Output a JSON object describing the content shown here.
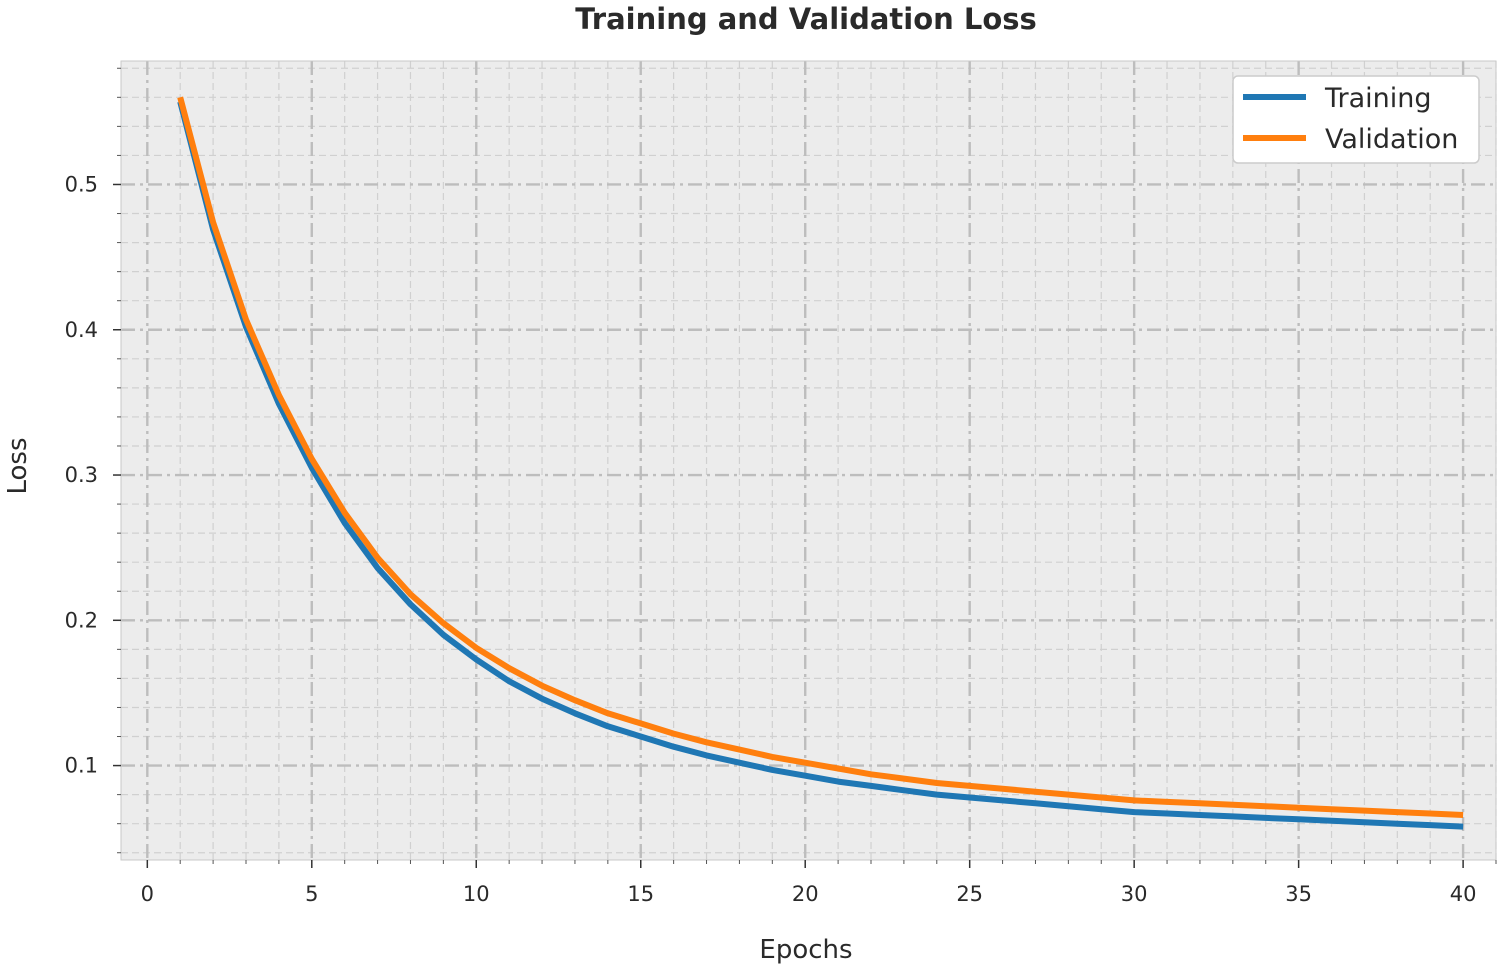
{
  "chart_data": {
    "type": "line",
    "title": "Training and Validation Loss",
    "xlabel": "Epochs",
    "ylabel": "Loss",
    "xlim": [
      -0.8,
      41.0
    ],
    "ylim": [
      0.035,
      0.585
    ],
    "xticks": [
      0,
      5,
      10,
      15,
      20,
      25,
      30,
      35,
      40
    ],
    "xtick_labels": [
      "0",
      "5",
      "10",
      "15",
      "20",
      "25",
      "30",
      "35",
      "40"
    ],
    "yticks": [
      0.1,
      0.2,
      0.3,
      0.4,
      0.5
    ],
    "ytick_labels": [
      "0.1",
      "0.2",
      "0.3",
      "0.4",
      "0.5"
    ],
    "grid": true,
    "legend_position": "top-right",
    "x": [
      1,
      2,
      3,
      4,
      5,
      6,
      7,
      8,
      9,
      10,
      11,
      12,
      13,
      14,
      15,
      16,
      17,
      18,
      19,
      20,
      21,
      22,
      23,
      24,
      25,
      26,
      27,
      28,
      29,
      30,
      31,
      32,
      33,
      34,
      35,
      36,
      37,
      38,
      39,
      40
    ],
    "series": [
      {
        "name": "Training",
        "color": "#1f77b4",
        "values": [
          0.557,
          0.469,
          0.402,
          0.349,
          0.305,
          0.267,
          0.236,
          0.211,
          0.19,
          0.173,
          0.158,
          0.146,
          0.136,
          0.127,
          0.12,
          0.113,
          0.107,
          0.102,
          0.097,
          0.093,
          0.089,
          0.086,
          0.083,
          0.08,
          0.078,
          0.076,
          0.074,
          0.072,
          0.07,
          0.068,
          0.067,
          0.066,
          0.065,
          0.064,
          0.063,
          0.062,
          0.061,
          0.06,
          0.059,
          0.058
        ]
      },
      {
        "name": "Validation",
        "color": "#ff7f0e",
        "values": [
          0.56,
          0.474,
          0.407,
          0.355,
          0.311,
          0.274,
          0.243,
          0.218,
          0.198,
          0.181,
          0.167,
          0.155,
          0.145,
          0.136,
          0.129,
          0.122,
          0.116,
          0.111,
          0.106,
          0.102,
          0.098,
          0.094,
          0.091,
          0.088,
          0.086,
          0.084,
          0.082,
          0.08,
          0.078,
          0.076,
          0.075,
          0.074,
          0.073,
          0.072,
          0.071,
          0.07,
          0.069,
          0.068,
          0.067,
          0.066
        ]
      }
    ]
  }
}
